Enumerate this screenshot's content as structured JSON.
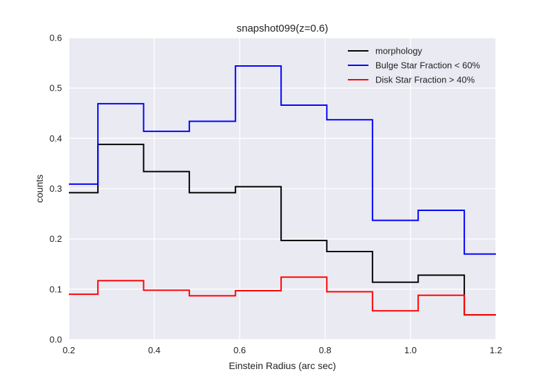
{
  "chart_data": {
    "type": "line",
    "step": true,
    "title": "snapshot099(z=0.6)",
    "xlabel": "Einstein Radius (arc sec)",
    "ylabel": "counts",
    "xlim": [
      0.2,
      1.2
    ],
    "ylim": [
      0.0,
      0.6
    ],
    "xticks": [
      "0.2",
      "0.4",
      "0.6",
      "0.8",
      "1.0",
      "1.2"
    ],
    "yticks": [
      "0.0",
      "0.1",
      "0.2",
      "0.3",
      "0.4",
      "0.5",
      "0.6"
    ],
    "grid": true,
    "legend_position": "top-right",
    "bin_edges": [
      0.2,
      0.268,
      0.375,
      0.482,
      0.59,
      0.697,
      0.804,
      0.911,
      1.018,
      1.126,
      1.2
    ],
    "series": [
      {
        "name": "morphology",
        "color": "#000000",
        "values": [
          0.292,
          0.388,
          0.334,
          0.292,
          0.304,
          0.197,
          0.175,
          0.114,
          0.128,
          0.049
        ]
      },
      {
        "name": "Bulge Star Fraction < 60%",
        "color": "#0000ff",
        "values": [
          0.309,
          0.469,
          0.414,
          0.434,
          0.544,
          0.466,
          0.437,
          0.237,
          0.257,
          0.17
        ]
      },
      {
        "name": "Disk Star Fraction > 40%",
        "color": "#ff0000",
        "values": [
          0.09,
          0.117,
          0.098,
          0.087,
          0.097,
          0.124,
          0.095,
          0.057,
          0.088,
          0.049
        ]
      }
    ]
  }
}
